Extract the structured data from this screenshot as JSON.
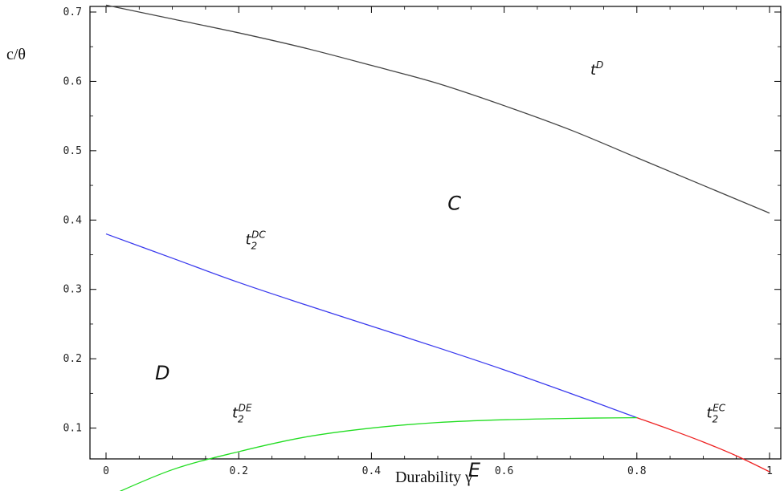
{
  "chart_data": {
    "type": "line",
    "xlabel": "Durability γ",
    "ylabel": "c/θ",
    "xlim": [
      0,
      1
    ],
    "ylim": [
      0,
      0.7
    ],
    "x_ticks": [
      "0",
      "0.2",
      "0.4",
      "0.6",
      "0.8",
      "1"
    ],
    "y_ticks": [
      "0.1",
      "0.2",
      "0.3",
      "0.4",
      "0.5",
      "0.6",
      "0.7"
    ],
    "grid": false,
    "series": [
      {
        "name": "t^D",
        "color": "#444444",
        "x": [
          0,
          0.1,
          0.2,
          0.3,
          0.4,
          0.5,
          0.6,
          0.7,
          0.8,
          0.9,
          1.0
        ],
        "y": [
          0.71,
          0.69,
          0.67,
          0.648,
          0.623,
          0.597,
          0.565,
          0.53,
          0.49,
          0.45,
          0.41
        ]
      },
      {
        "name": "t_2^DC",
        "color": "#3a3aee",
        "x": [
          0,
          0.1,
          0.2,
          0.3,
          0.4,
          0.5,
          0.6,
          0.7,
          0.8
        ],
        "y": [
          0.38,
          0.345,
          0.31,
          0.278,
          0.247,
          0.216,
          0.184,
          0.15,
          0.115
        ]
      },
      {
        "name": "t_2^DE",
        "color": "#22dd22",
        "x": [
          0,
          0.1,
          0.2,
          0.3,
          0.4,
          0.5,
          0.6,
          0.7,
          0.8
        ],
        "y": [
          0.0,
          0.04,
          0.066,
          0.087,
          0.1,
          0.108,
          0.112,
          0.114,
          0.115
        ]
      },
      {
        "name": "t_2^EC",
        "color": "#ee2222",
        "x": [
          0.8,
          0.85,
          0.9,
          0.95,
          1.0
        ],
        "y": [
          0.115,
          0.098,
          0.08,
          0.06,
          0.037
        ]
      }
    ],
    "curve_labels": [
      {
        "base": "t",
        "sup": "D",
        "sub": "",
        "x": 0.73,
        "y": 0.61
      },
      {
        "base": "t",
        "sup": "DC",
        "sub": "2",
        "x": 0.21,
        "y": 0.365
      },
      {
        "base": "t",
        "sup": "DE",
        "sub": "2",
        "x": 0.19,
        "y": 0.115
      },
      {
        "base": "t",
        "sup": "EC",
        "sub": "2",
        "x": 0.905,
        "y": 0.115
      }
    ],
    "region_labels": [
      {
        "text": "C",
        "x": 0.525,
        "y": 0.415
      },
      {
        "text": "D",
        "x": 0.085,
        "y": 0.17
      },
      {
        "text": "E",
        "x": 0.555,
        "y": 0.03
      }
    ]
  }
}
